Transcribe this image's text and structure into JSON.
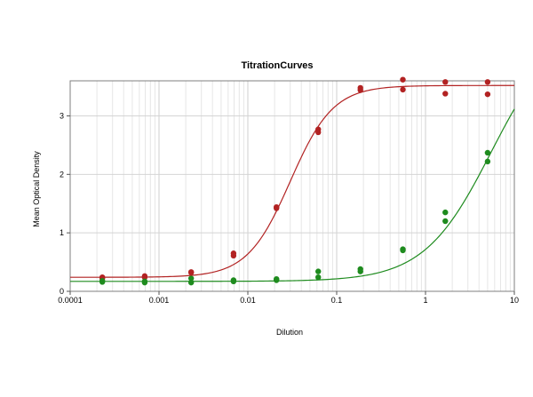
{
  "chart_data": {
    "type": "scatter",
    "title": "TitrationCurves",
    "xlabel": "Dilution",
    "ylabel": "Mean Optical Density",
    "xscale": "log",
    "xlim": [
      0.0001,
      10
    ],
    "ylim": [
      0,
      3.6
    ],
    "x_ticks": [
      "0.0001",
      "0.001",
      "0.01",
      "0.1",
      "1",
      "10"
    ],
    "x_tick_values": [
      0.0001,
      0.001,
      0.01,
      0.1,
      1,
      10
    ],
    "y_ticks": [
      "0",
      "1",
      "2",
      "3"
    ],
    "y_tick_values": [
      0,
      1,
      2,
      3
    ],
    "grid": true,
    "legend": "none",
    "series": [
      {
        "color": "#b22222",
        "points": [
          [
            0.00023,
            0.24
          ],
          [
            0.00023,
            0.22
          ],
          [
            0.00069,
            0.26
          ],
          [
            0.00069,
            0.24
          ],
          [
            0.0023,
            0.33
          ],
          [
            0.0023,
            0.32
          ],
          [
            0.0069,
            0.65
          ],
          [
            0.0069,
            0.61
          ],
          [
            0.021,
            1.44
          ],
          [
            0.021,
            1.42
          ],
          [
            0.062,
            2.77
          ],
          [
            0.062,
            2.72
          ],
          [
            0.185,
            3.48
          ],
          [
            0.185,
            3.44
          ],
          [
            0.556,
            3.62
          ],
          [
            0.556,
            3.45
          ],
          [
            1.67,
            3.58
          ],
          [
            1.67,
            3.38
          ],
          [
            5.0,
            3.58
          ],
          [
            5.0,
            3.37
          ]
        ],
        "fit": {
          "bottom": 0.24,
          "top": 3.52,
          "ec50": 0.03,
          "hill": 1.8
        }
      },
      {
        "color": "#1e8b1e",
        "points": [
          [
            0.00023,
            0.18
          ],
          [
            0.00023,
            0.16
          ],
          [
            0.00069,
            0.17
          ],
          [
            0.00069,
            0.15
          ],
          [
            0.0023,
            0.22
          ],
          [
            0.0023,
            0.15
          ],
          [
            0.0069,
            0.19
          ],
          [
            0.0069,
            0.17
          ],
          [
            0.021,
            0.21
          ],
          [
            0.021,
            0.19
          ],
          [
            0.062,
            0.34
          ],
          [
            0.062,
            0.24
          ],
          [
            0.185,
            0.38
          ],
          [
            0.185,
            0.34
          ],
          [
            0.556,
            0.72
          ],
          [
            0.556,
            0.7
          ],
          [
            1.67,
            1.35
          ],
          [
            1.67,
            1.2
          ],
          [
            5.0,
            2.37
          ],
          [
            5.0,
            2.22
          ]
        ],
        "fit": {
          "bottom": 0.17,
          "top": 4.6,
          "ec50": 5.5,
          "hill": 1.15
        }
      }
    ]
  }
}
